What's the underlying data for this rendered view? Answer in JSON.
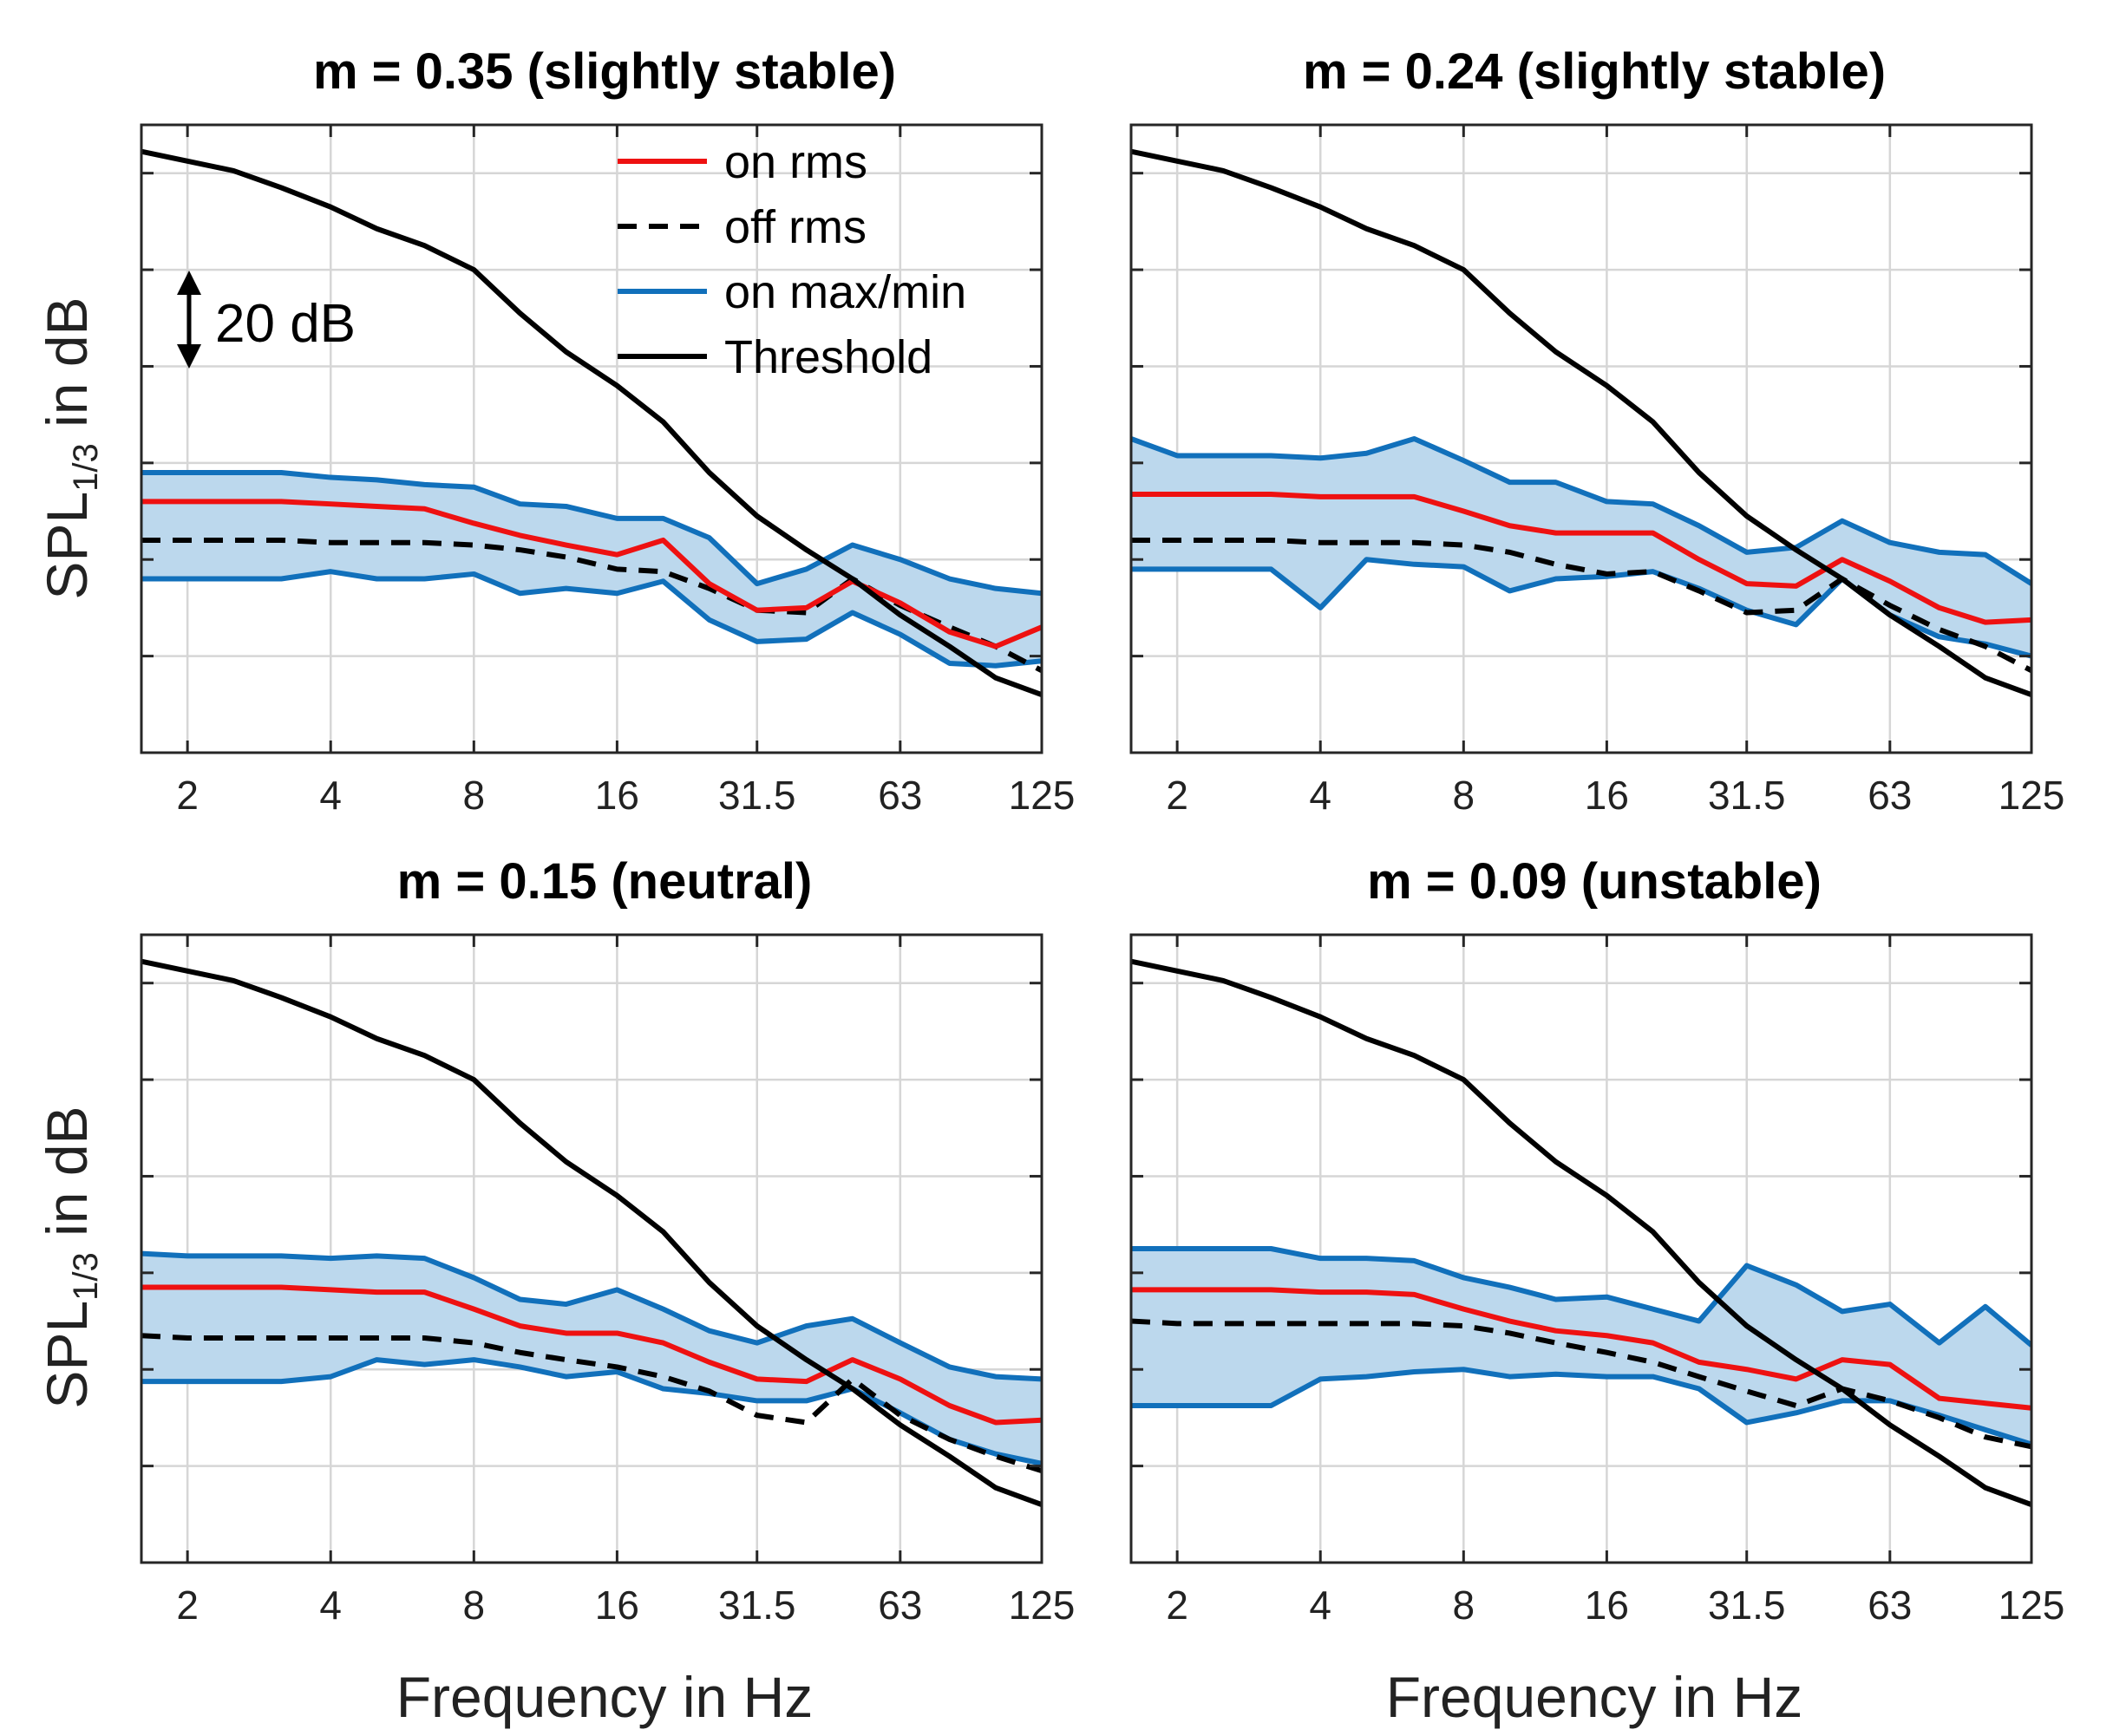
{
  "figure": {
    "x_label": "Frequency in Hz",
    "y_label_main": "SPL",
    "y_label_sub": "1/3",
    "y_label_rest": " in dB",
    "annotation": "20 dB",
    "legend": [
      {
        "label": "on rms",
        "color": "#ee1111",
        "style": "solid"
      },
      {
        "label": "off rms",
        "color": "#000000",
        "style": "dashed"
      },
      {
        "label": "on max/min",
        "color": "#1170bb",
        "style": "solid"
      },
      {
        "label": "Threshold",
        "color": "#000000",
        "style": "solid"
      }
    ]
  },
  "colors": {
    "on_rms": "#ee1111",
    "off_rms": "#000000",
    "on_maxmin": "#1170bb",
    "band_fill": "#bcd8ed",
    "threshold": "#000000"
  },
  "chart_data": [
    {
      "type": "line",
      "title": "m = 0.35 (slightly stable)",
      "xlabel": "",
      "ylabel": "SPL1/3 in dB",
      "x_scale": "log2",
      "xlim": [
        1.6,
        125
      ],
      "ylim": [
        0,
        130
      ],
      "x_ticks": [
        2,
        4,
        8,
        16,
        31.5,
        63,
        125
      ],
      "x_tick_labels": [
        "2",
        "4",
        "8",
        "16",
        "31.5",
        "63",
        "125"
      ],
      "y_ticks": [
        20,
        40,
        60,
        80,
        100,
        120
      ],
      "x": [
        1.6,
        2,
        2.5,
        3.15,
        4,
        5,
        6.3,
        8,
        10,
        12.5,
        16,
        20,
        25,
        31.5,
        40,
        50,
        63,
        80,
        100,
        125
      ],
      "series": [
        {
          "name": "on rms",
          "values": [
            52,
            52,
            52,
            52,
            51.5,
            51,
            50.5,
            47.5,
            45,
            43,
            41,
            44,
            35,
            29.5,
            30,
            35.5,
            31,
            25,
            22,
            26
          ]
        },
        {
          "name": "off rms",
          "values": [
            44,
            44,
            44,
            44,
            43.5,
            43.5,
            43.5,
            43,
            42,
            40.5,
            38,
            37.5,
            34,
            29.5,
            29,
            36,
            30.5,
            26,
            22,
            17
          ]
        },
        {
          "name": "on max",
          "values": [
            58,
            58,
            58,
            58,
            57,
            56.5,
            55.5,
            55,
            51.5,
            51,
            48.5,
            48.5,
            44.5,
            35,
            38,
            43,
            40,
            36,
            34,
            33
          ]
        },
        {
          "name": "on min",
          "values": [
            36,
            36,
            36,
            36,
            37.5,
            36,
            36,
            37,
            33,
            34,
            33,
            35.5,
            27.5,
            23,
            23.5,
            29,
            24.5,
            18.5,
            18,
            19
          ]
        },
        {
          "name": "Threshold",
          "values": [
            124.5,
            122.5,
            120.5,
            117,
            113,
            108.5,
            105,
            100,
            91,
            83,
            76,
            68.5,
            58,
            49,
            42,
            36,
            28.5,
            22,
            15.5,
            12
          ]
        }
      ]
    },
    {
      "type": "line",
      "title": "m = 0.24 (slightly stable)",
      "xlabel": "",
      "ylabel": "",
      "x_scale": "log2",
      "xlim": [
        1.6,
        125
      ],
      "ylim": [
        0,
        130
      ],
      "x_ticks": [
        2,
        4,
        8,
        16,
        31.5,
        63,
        125
      ],
      "x_tick_labels": [
        "2",
        "4",
        "8",
        "16",
        "31.5",
        "63",
        "125"
      ],
      "y_ticks": [
        20,
        40,
        60,
        80,
        100,
        120
      ],
      "x": [
        1.6,
        2,
        2.5,
        3.15,
        4,
        5,
        6.3,
        8,
        10,
        12.5,
        16,
        20,
        25,
        31.5,
        40,
        50,
        63,
        80,
        100,
        125
      ],
      "series": [
        {
          "name": "on rms",
          "values": [
            53.5,
            53.5,
            53.5,
            53.5,
            53,
            53,
            53,
            50,
            47,
            45.5,
            45.5,
            45.5,
            40,
            35,
            34.5,
            40,
            35.5,
            30,
            27,
            27.5
          ]
        },
        {
          "name": "off rms",
          "values": [
            44,
            44,
            44,
            44,
            43.5,
            43.5,
            43.5,
            43,
            41.5,
            39,
            37,
            37.5,
            33.5,
            29,
            29.5,
            36,
            30.5,
            25.5,
            22,
            17
          ]
        },
        {
          "name": "on max",
          "values": [
            65,
            61.5,
            61.5,
            61.5,
            61,
            62,
            65,
            60.5,
            56,
            56,
            52,
            51.5,
            47,
            41.5,
            42.5,
            48,
            43.5,
            41.5,
            41,
            35
          ]
        },
        {
          "name": "on min",
          "values": [
            38,
            38,
            38,
            38,
            30,
            40,
            39,
            38.5,
            33.5,
            36,
            36.5,
            37.5,
            34,
            29.5,
            26.5,
            36,
            28.5,
            24,
            22.5,
            20
          ]
        },
        {
          "name": "Threshold",
          "values": [
            124.5,
            122.5,
            120.5,
            117,
            113,
            108.5,
            105,
            100,
            91,
            83,
            76,
            68.5,
            58,
            49,
            42,
            36,
            28.5,
            22,
            15.5,
            12
          ]
        }
      ]
    },
    {
      "type": "line",
      "title": "m = 0.15 (neutral)",
      "xlabel": "Frequency in Hz",
      "ylabel": "SPL1/3 in dB",
      "x_scale": "log2",
      "xlim": [
        1.6,
        125
      ],
      "ylim": [
        0,
        130
      ],
      "x_ticks": [
        2,
        4,
        8,
        16,
        31.5,
        63,
        125
      ],
      "x_tick_labels": [
        "2",
        "4",
        "8",
        "16",
        "31.5",
        "63",
        "125"
      ],
      "y_ticks": [
        20,
        40,
        60,
        80,
        100,
        120
      ],
      "x": [
        1.6,
        2,
        2.5,
        3.15,
        4,
        5,
        6.3,
        8,
        10,
        12.5,
        16,
        20,
        25,
        31.5,
        40,
        50,
        63,
        80,
        100,
        125
      ],
      "series": [
        {
          "name": "on rms",
          "values": [
            57,
            57,
            57,
            57,
            56.5,
            56,
            56,
            52.5,
            49,
            47.5,
            47.5,
            45.5,
            41.5,
            38,
            37.5,
            42,
            38,
            32.5,
            29,
            29.5
          ]
        },
        {
          "name": "off rms",
          "values": [
            47,
            46.5,
            46.5,
            46.5,
            46.5,
            46.5,
            46.5,
            45.5,
            43.5,
            42,
            40.5,
            38.5,
            35.5,
            30.5,
            29,
            38,
            30.5,
            25.5,
            22,
            19
          ]
        },
        {
          "name": "on max",
          "values": [
            64,
            63.5,
            63.5,
            63.5,
            63,
            63.5,
            63,
            59,
            54.5,
            53.5,
            56.5,
            52.5,
            48,
            45.5,
            49,
            50.5,
            45.5,
            40.5,
            38.5,
            38
          ]
        },
        {
          "name": "on min",
          "values": [
            37.5,
            37.5,
            37.5,
            37.5,
            38.5,
            42,
            41,
            42,
            40.5,
            38.5,
            39.5,
            36,
            35,
            33.5,
            33.5,
            36,
            31,
            25.5,
            22.5,
            20.5
          ]
        },
        {
          "name": "Threshold",
          "values": [
            124.5,
            122.5,
            120.5,
            117,
            113,
            108.5,
            105,
            100,
            91,
            83,
            76,
            68.5,
            58,
            49,
            42,
            36,
            28.5,
            22,
            15.5,
            12
          ]
        }
      ]
    },
    {
      "type": "line",
      "title": "m = 0.09 (unstable)",
      "xlabel": "Frequency in Hz",
      "ylabel": "",
      "x_scale": "log2",
      "xlim": [
        1.6,
        125
      ],
      "ylim": [
        0,
        130
      ],
      "x_ticks": [
        2,
        4,
        8,
        16,
        31.5,
        63,
        125
      ],
      "x_tick_labels": [
        "2",
        "4",
        "8",
        "16",
        "31.5",
        "63",
        "125"
      ],
      "y_ticks": [
        20,
        40,
        60,
        80,
        100,
        120
      ],
      "x": [
        1.6,
        2,
        2.5,
        3.15,
        4,
        5,
        6.3,
        8,
        10,
        12.5,
        16,
        20,
        25,
        31.5,
        40,
        50,
        63,
        80,
        100,
        125
      ],
      "series": [
        {
          "name": "on rms",
          "values": [
            56.5,
            56.5,
            56.5,
            56.5,
            56,
            56,
            55.5,
            52.5,
            50,
            48,
            47,
            45.5,
            41.5,
            40,
            38,
            42,
            41,
            34,
            33,
            32
          ]
        },
        {
          "name": "off rms",
          "values": [
            50,
            49.5,
            49.5,
            49.5,
            49.5,
            49.5,
            49.5,
            49,
            47.5,
            45.5,
            43.5,
            41.5,
            38.5,
            35.5,
            32.5,
            36,
            33.5,
            30,
            26,
            24
          ]
        },
        {
          "name": "on max",
          "values": [
            65,
            65,
            65,
            65,
            63,
            63,
            62.5,
            59,
            57,
            54.5,
            55,
            52.5,
            50,
            61.5,
            57.5,
            52,
            53.5,
            45.5,
            53,
            45
          ]
        },
        {
          "name": "on min",
          "values": [
            32.5,
            32.5,
            32.5,
            32.5,
            38,
            38.5,
            39.5,
            40,
            38.5,
            39,
            38.5,
            38.5,
            36,
            29,
            31,
            33.5,
            33.5,
            30.5,
            27.5,
            24.5
          ]
        },
        {
          "name": "Threshold",
          "values": [
            124.5,
            122.5,
            120.5,
            117,
            113,
            108.5,
            105,
            100,
            91,
            83,
            76,
            68.5,
            58,
            49,
            42,
            36,
            28.5,
            22,
            15.5,
            12
          ]
        }
      ]
    }
  ]
}
